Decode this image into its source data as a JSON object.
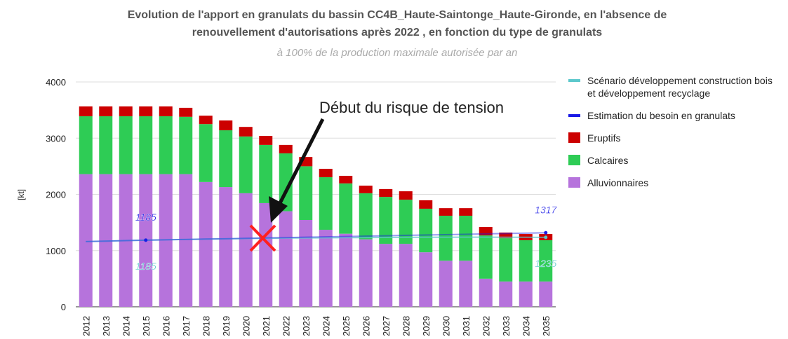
{
  "chart_data": {
    "type": "bar",
    "title": [
      "Evolution de l'apport en granulats du bassin CC4B_Haute-Saintonge_Haute-Gironde,  en l'absence de",
      "renouvellement d'autorisations après 2022 , en fonction du type de granulats"
    ],
    "subtitle": "à 100% de la production maximale autorisée par an",
    "y_label": "[kt]",
    "annotation": "Début du risque de tension",
    "categories": [
      "2012",
      "2013",
      "2014",
      "2015",
      "2016",
      "2017",
      "2018",
      "2019",
      "2020",
      "2021",
      "2022",
      "2023",
      "2024",
      "2025",
      "2026",
      "2027",
      "2028",
      "2029",
      "2030",
      "2031",
      "2032",
      "2033",
      "2034",
      "2035"
    ],
    "ylim": [
      0,
      4000
    ],
    "yticks": [
      0,
      1000,
      2000,
      3000,
      4000
    ],
    "series": [
      {
        "name": "Scénario développement construction bois et développement recyclage",
        "type": "line",
        "color": "#5cc8cc",
        "labeled_points": [
          3,
          23
        ],
        "values": [
          1160,
          1168,
          1177,
          1185,
          1192,
          1198,
          1204,
          1209,
          1214,
          1218,
          1222,
          1225,
          1228,
          1230,
          1232,
          1234,
          1235,
          1236,
          1237,
          1238,
          1238,
          1237,
          1236,
          1235
        ]
      },
      {
        "name": "Estimation du besoin en granulats",
        "type": "line",
        "color": "#1a1ae6",
        "labeled_points": [
          3,
          23
        ],
        "values": [
          1160,
          1168,
          1177,
          1185,
          1192,
          1198,
          1205,
          1211,
          1218,
          1225,
          1231,
          1238,
          1244,
          1251,
          1257,
          1264,
          1271,
          1277,
          1284,
          1290,
          1297,
          1304,
          1310,
          1317
        ]
      },
      {
        "name": "Eruptifs",
        "type": "bar",
        "color": "#cc0000",
        "values": [
          175,
          175,
          175,
          175,
          175,
          160,
          150,
          175,
          170,
          160,
          150,
          165,
          150,
          135,
          135,
          140,
          150,
          150,
          135,
          135,
          150,
          100,
          110,
          110
        ]
      },
      {
        "name": "Calcaires",
        "type": "bar",
        "color": "#2ecc55",
        "values": [
          1030,
          1030,
          1030,
          1030,
          1030,
          1020,
          1030,
          1010,
          1010,
          1035,
          1030,
          955,
          935,
          895,
          820,
          835,
          785,
          775,
          800,
          800,
          770,
          770,
          735,
          735
        ]
      },
      {
        "name": "Alluvionnaires",
        "type": "bar",
        "color": "#b673dc",
        "values": [
          2360,
          2360,
          2360,
          2360,
          2360,
          2360,
          2220,
          2130,
          2020,
          1845,
          1700,
          1545,
          1370,
          1300,
          1200,
          1120,
          1120,
          970,
          820,
          820,
          500,
          450,
          450,
          450
        ]
      }
    ]
  }
}
